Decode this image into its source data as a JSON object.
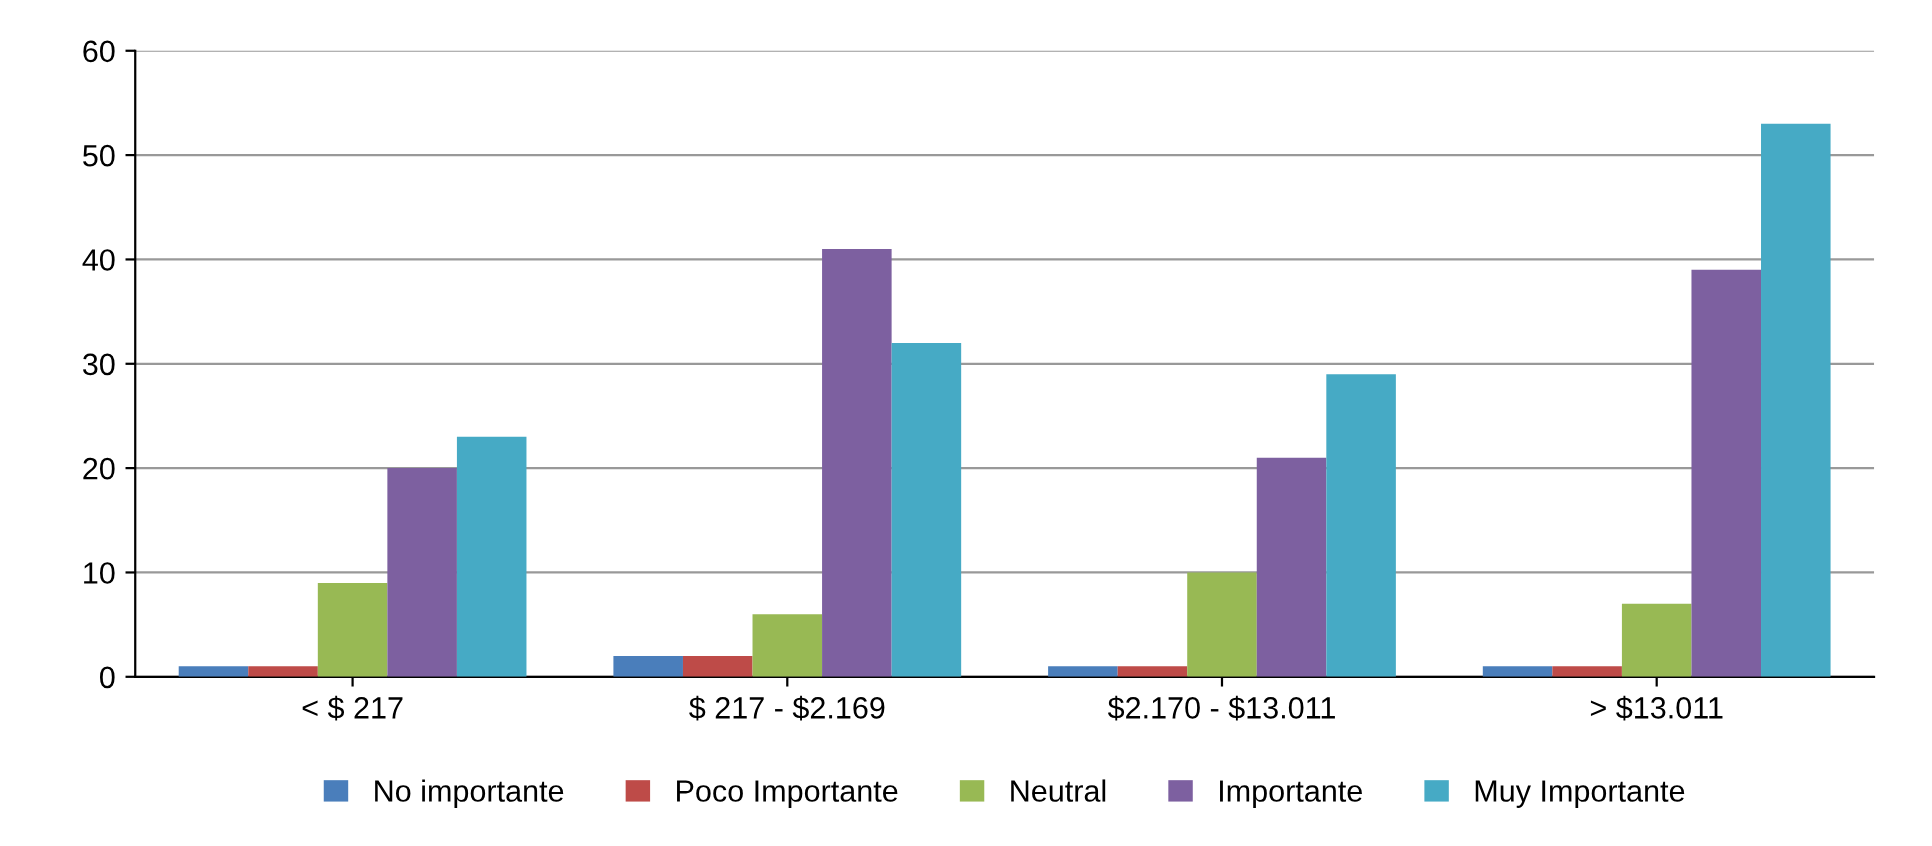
{
  "chart_data": {
    "type": "bar",
    "categories": [
      "< $ 217",
      "$ 217 - $2.169",
      "$2.170 - $13.011",
      "> $13.011"
    ],
    "series": [
      {
        "name": "No importante",
        "color": "#4a7ebb",
        "values": [
          1,
          2,
          1,
          1
        ]
      },
      {
        "name": "Poco Importante",
        "color": "#be4b48",
        "values": [
          1,
          2,
          1,
          1
        ]
      },
      {
        "name": "Neutral",
        "color": "#98b954",
        "values": [
          9,
          6,
          10,
          7
        ]
      },
      {
        "name": "Importante",
        "color": "#7d60a0",
        "values": [
          20,
          41,
          21,
          39
        ]
      },
      {
        "name": "Muy Importante",
        "color": "#46aac5",
        "values": [
          23,
          32,
          29,
          53
        ]
      }
    ],
    "ylim": [
      0,
      60
    ],
    "yticks": [
      0,
      10,
      20,
      30,
      40,
      50,
      60
    ],
    "grid": "y",
    "legend": "bottom"
  }
}
